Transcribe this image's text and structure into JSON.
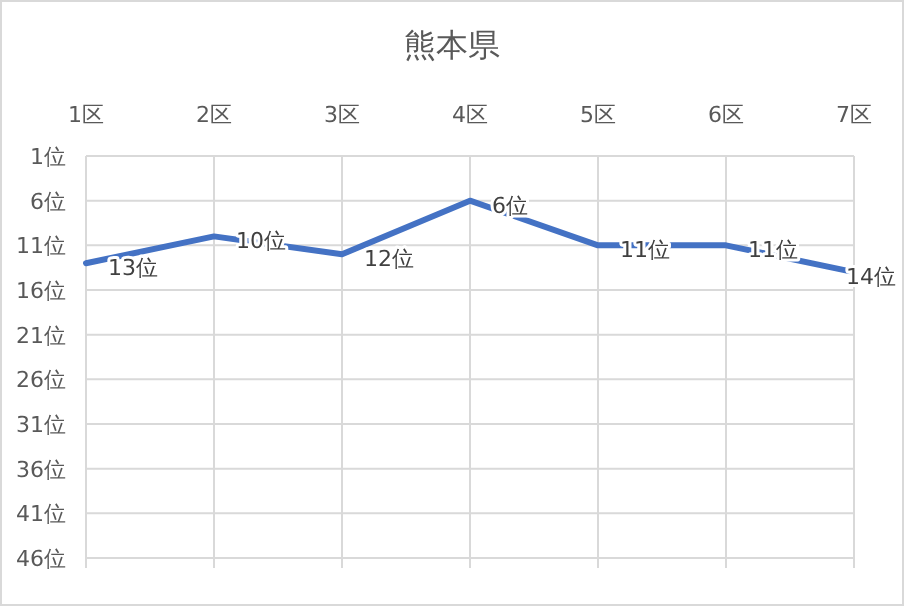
{
  "chart_data": {
    "type": "line",
    "title": "熊本県",
    "categories": [
      "1区",
      "2区",
      "3区",
      "4区",
      "5区",
      "6区",
      "7区"
    ],
    "series": [
      {
        "color": "#4472c4",
        "values": [
          13,
          10,
          12,
          6,
          11,
          11,
          14
        ],
        "value_labels": [
          "13位",
          "10位",
          "12位",
          "6位",
          "11位",
          "11位",
          "14位"
        ]
      }
    ],
    "ylim": [
      46,
      1
    ],
    "yticks": [
      {
        "value": 1,
        "label": "1位"
      },
      {
        "value": 6,
        "label": "6位"
      },
      {
        "value": 11,
        "label": "11位"
      },
      {
        "value": 16,
        "label": "16位"
      },
      {
        "value": 21,
        "label": "21位"
      },
      {
        "value": 26,
        "label": "26位"
      },
      {
        "value": 31,
        "label": "31位"
      },
      {
        "value": 36,
        "label": "36位"
      },
      {
        "value": 41,
        "label": "41位"
      },
      {
        "value": 46,
        "label": "46位"
      }
    ],
    "grid": true,
    "marker": "none",
    "line_style": "solid"
  }
}
